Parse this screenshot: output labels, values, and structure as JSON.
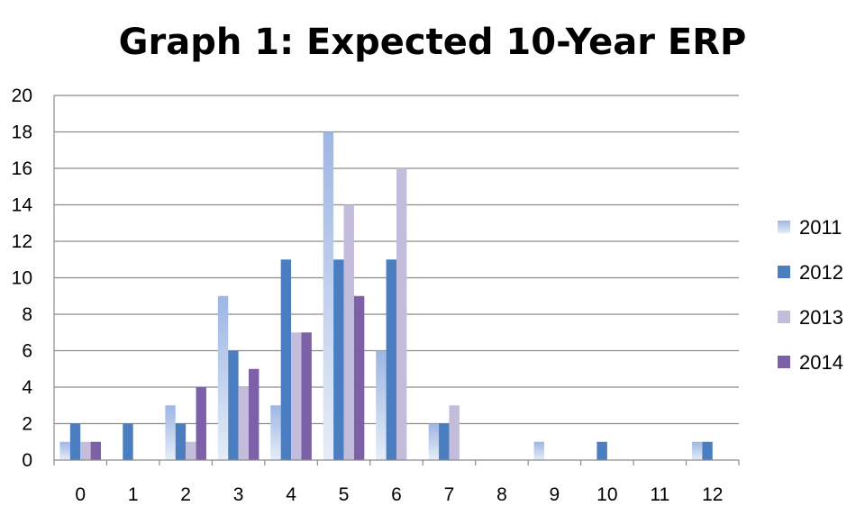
{
  "chart_data": {
    "type": "bar",
    "title": "Graph 1: Expected 10-Year ERP",
    "xlabel": "",
    "ylabel": "",
    "categories": [
      "0",
      "1",
      "2",
      "3",
      "4",
      "5",
      "6",
      "7",
      "8",
      "9",
      "10",
      "11",
      "12"
    ],
    "ylim": [
      0,
      20
    ],
    "yticks": [
      "0",
      "2",
      "4",
      "6",
      "8",
      "10",
      "12",
      "14",
      "16",
      "18",
      "20"
    ],
    "grid": true,
    "legend_position": "right",
    "series": [
      {
        "name": "2011",
        "color": "#A9C0E6",
        "values": [
          1,
          0,
          3,
          9,
          3,
          18,
          6,
          2,
          0,
          1,
          0,
          0,
          1
        ]
      },
      {
        "name": "2012",
        "color": "#4A7EC1",
        "values": [
          2,
          2,
          2,
          6,
          11,
          11,
          11,
          2,
          0,
          0,
          1,
          0,
          1
        ]
      },
      {
        "name": "2013",
        "color": "#C4BCDB",
        "values": [
          1,
          0,
          1,
          4,
          7,
          14,
          16,
          3,
          0,
          0,
          0,
          0,
          0
        ]
      },
      {
        "name": "2014",
        "color": "#7D61A8",
        "values": [
          1,
          0,
          4,
          5,
          7,
          9,
          0,
          0,
          0,
          0,
          0,
          0,
          0
        ]
      }
    ]
  }
}
